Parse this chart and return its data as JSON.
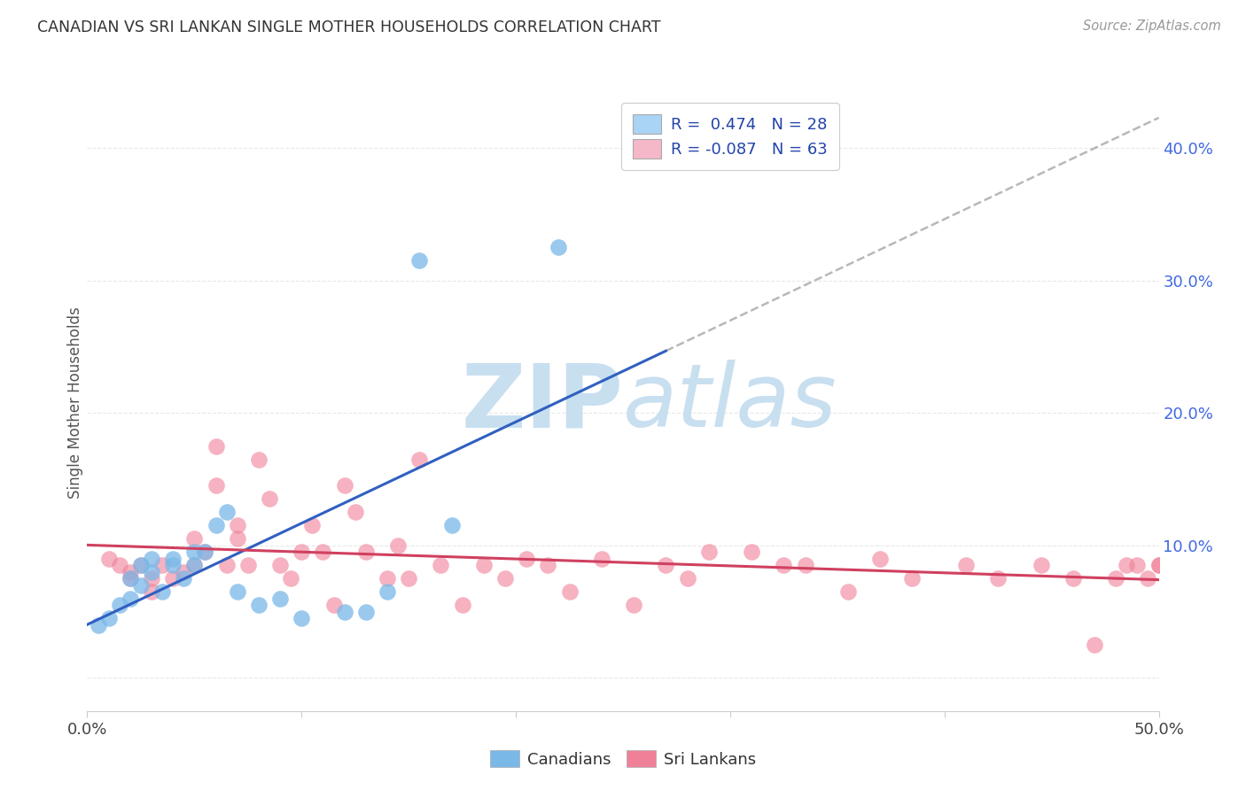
{
  "title": "CANADIAN VS SRI LANKAN SINGLE MOTHER HOUSEHOLDS CORRELATION CHART",
  "source": "Source: ZipAtlas.com",
  "ylabel": "Single Mother Households",
  "xlim": [
    0.0,
    0.5
  ],
  "ylim": [
    -0.025,
    0.44
  ],
  "legend_canadian": {
    "R": 0.474,
    "N": 28,
    "color": "#aad4f5"
  },
  "legend_srilankan": {
    "R": -0.087,
    "N": 63,
    "color": "#f5b8c8"
  },
  "canadian_color": "#7ab8e8",
  "srilankan_color": "#f08098",
  "trend_canadian_color": "#3060c0",
  "trend_srilankan_color": "#d04060",
  "dashed_line_color": "#b8b8b8",
  "watermark_zip_color": "#c8dff0",
  "watermark_atlas_color": "#c8dff0",
  "background_color": "#ffffff",
  "grid_color": "#e8e8e8",
  "canadians_x": [
    0.005,
    0.01,
    0.015,
    0.02,
    0.02,
    0.025,
    0.025,
    0.03,
    0.03,
    0.035,
    0.04,
    0.04,
    0.045,
    0.05,
    0.05,
    0.055,
    0.06,
    0.065,
    0.07,
    0.08,
    0.09,
    0.1,
    0.12,
    0.13,
    0.14,
    0.155,
    0.17,
    0.22
  ],
  "canadians_y": [
    0.04,
    0.045,
    0.055,
    0.075,
    0.06,
    0.085,
    0.07,
    0.09,
    0.08,
    0.065,
    0.09,
    0.085,
    0.075,
    0.095,
    0.085,
    0.095,
    0.115,
    0.125,
    0.065,
    0.055,
    0.06,
    0.045,
    0.05,
    0.05,
    0.065,
    0.315,
    0.115,
    0.325
  ],
  "srilankans_x": [
    0.01,
    0.015,
    0.02,
    0.02,
    0.025,
    0.03,
    0.03,
    0.035,
    0.04,
    0.045,
    0.05,
    0.05,
    0.055,
    0.06,
    0.06,
    0.065,
    0.07,
    0.07,
    0.075,
    0.08,
    0.085,
    0.09,
    0.095,
    0.1,
    0.105,
    0.11,
    0.115,
    0.12,
    0.125,
    0.13,
    0.14,
    0.145,
    0.15,
    0.155,
    0.165,
    0.175,
    0.185,
    0.195,
    0.205,
    0.215,
    0.225,
    0.24,
    0.255,
    0.27,
    0.28,
    0.29,
    0.31,
    0.325,
    0.335,
    0.355,
    0.37,
    0.385,
    0.41,
    0.425,
    0.445,
    0.46,
    0.47,
    0.48,
    0.485,
    0.49,
    0.495,
    0.5,
    0.5
  ],
  "srilankans_y": [
    0.09,
    0.085,
    0.08,
    0.075,
    0.085,
    0.075,
    0.065,
    0.085,
    0.075,
    0.08,
    0.105,
    0.085,
    0.095,
    0.175,
    0.145,
    0.085,
    0.115,
    0.105,
    0.085,
    0.165,
    0.135,
    0.085,
    0.075,
    0.095,
    0.115,
    0.095,
    0.055,
    0.145,
    0.125,
    0.095,
    0.075,
    0.1,
    0.075,
    0.165,
    0.085,
    0.055,
    0.085,
    0.075,
    0.09,
    0.085,
    0.065,
    0.09,
    0.055,
    0.085,
    0.075,
    0.095,
    0.095,
    0.085,
    0.085,
    0.065,
    0.09,
    0.075,
    0.085,
    0.075,
    0.085,
    0.075,
    0.025,
    0.075,
    0.085,
    0.085,
    0.075,
    0.085,
    0.085
  ]
}
